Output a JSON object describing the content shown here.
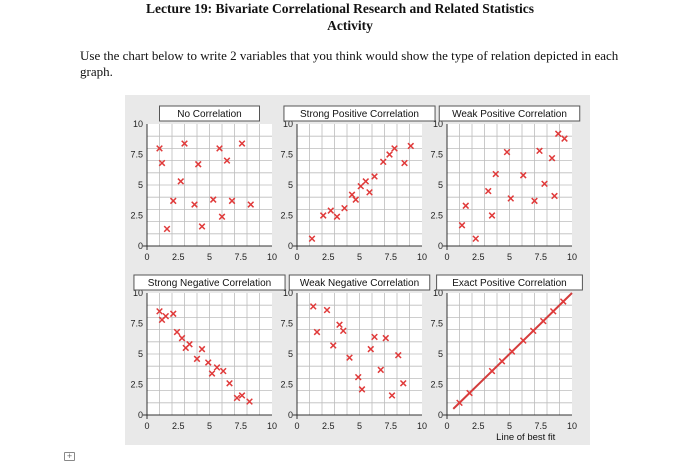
{
  "title": {
    "line1": "Lecture 19: Bivariate Correlational Research and Related Statistics",
    "line2": "Activity"
  },
  "instructions": "Use the chart below to write 2 variables that you think would show the type of relation depicted in each graph.",
  "colors": {
    "point": "#e03a3a",
    "line": "#d23c3c",
    "grid": "#bdbdbd",
    "plot_bg": "#ffffff",
    "panel_bg": "#e9e9e9"
  },
  "chart_data": [
    {
      "type": "scatter",
      "title": "No Correlation",
      "x_ticks": [
        "0",
        "2.5",
        "5",
        "7.5",
        "10"
      ],
      "y_ticks": [
        "0",
        "2.5",
        "5",
        "7.5",
        "10"
      ],
      "xlim": [
        0,
        10
      ],
      "ylim": [
        0,
        10
      ],
      "points": [
        [
          1,
          8
        ],
        [
          1.2,
          6.8
        ],
        [
          1.6,
          1.4
        ],
        [
          2.1,
          3.7
        ],
        [
          2.7,
          5.3
        ],
        [
          3,
          8.4
        ],
        [
          3.8,
          3.4
        ],
        [
          4.1,
          6.7
        ],
        [
          4.4,
          1.6
        ],
        [
          5.3,
          3.8
        ],
        [
          5.8,
          8
        ],
        [
          6,
          2.4
        ],
        [
          6.4,
          7
        ],
        [
          6.8,
          3.7
        ],
        [
          7.6,
          8.4
        ],
        [
          8.3,
          3.4
        ]
      ]
    },
    {
      "type": "scatter",
      "title": "Strong Positive Correlation",
      "x_ticks": [
        "0",
        "2.5",
        "5",
        "7.5",
        "10"
      ],
      "y_ticks": [
        "0",
        "2.5",
        "5",
        "7.5",
        "10"
      ],
      "xlim": [
        0,
        10
      ],
      "ylim": [
        0,
        10
      ],
      "points": [
        [
          1.2,
          0.6
        ],
        [
          2.1,
          2.5
        ],
        [
          2.7,
          2.9
        ],
        [
          3.2,
          2.4
        ],
        [
          3.8,
          3.1
        ],
        [
          4.4,
          4.2
        ],
        [
          4.7,
          3.8
        ],
        [
          5.1,
          4.9
        ],
        [
          5.5,
          5.3
        ],
        [
          5.8,
          4.4
        ],
        [
          6.2,
          5.7
        ],
        [
          6.9,
          6.9
        ],
        [
          7.4,
          7.5
        ],
        [
          7.8,
          8
        ],
        [
          8.6,
          6.8
        ],
        [
          9.1,
          8.2
        ]
      ]
    },
    {
      "type": "scatter",
      "title": "Weak Positive Correlation",
      "x_ticks": [
        "0",
        "2.5",
        "5",
        "7.5",
        "10"
      ],
      "y_ticks": [
        "0",
        "2.5",
        "5",
        "7.5",
        "10"
      ],
      "xlim": [
        0,
        10
      ],
      "ylim": [
        0,
        10
      ],
      "points": [
        [
          1.2,
          1.7
        ],
        [
          1.5,
          3.3
        ],
        [
          2.3,
          0.6
        ],
        [
          3.3,
          4.5
        ],
        [
          3.6,
          2.5
        ],
        [
          3.9,
          5.9
        ],
        [
          4.8,
          7.7
        ],
        [
          5.1,
          3.9
        ],
        [
          6.1,
          5.8
        ],
        [
          7,
          3.7
        ],
        [
          7.4,
          7.8
        ],
        [
          7.8,
          5.1
        ],
        [
          8.4,
          7.2
        ],
        [
          8.9,
          9.2
        ],
        [
          9.4,
          8.8
        ],
        [
          8.6,
          4.1
        ]
      ]
    },
    {
      "type": "scatter",
      "title": "Strong Negative Correlation",
      "x_ticks": [
        "0",
        "2.5",
        "5",
        "7.5",
        "10"
      ],
      "y_ticks": [
        "0",
        "2.5",
        "5",
        "7.5",
        "10"
      ],
      "xlim": [
        0,
        10
      ],
      "ylim": [
        0,
        10
      ],
      "points": [
        [
          1,
          8.5
        ],
        [
          1.2,
          7.8
        ],
        [
          1.5,
          8.1
        ],
        [
          2.1,
          8.3
        ],
        [
          2.4,
          6.8
        ],
        [
          2.8,
          6.3
        ],
        [
          3.1,
          5.5
        ],
        [
          3.4,
          5.8
        ],
        [
          4,
          4.6
        ],
        [
          4.4,
          5.4
        ],
        [
          4.9,
          4.3
        ],
        [
          5.2,
          3.4
        ],
        [
          5.6,
          3.9
        ],
        [
          6.1,
          3.6
        ],
        [
          6.6,
          2.6
        ],
        [
          7.2,
          1.4
        ],
        [
          7.6,
          1.6
        ],
        [
          8.2,
          1.1
        ]
      ]
    },
    {
      "type": "scatter",
      "title": "Weak Negative Correlation",
      "x_ticks": [
        "0",
        "2.5",
        "5",
        "7.5",
        "10"
      ],
      "y_ticks": [
        "0",
        "2.5",
        "5",
        "7.5",
        "10"
      ],
      "xlim": [
        0,
        10
      ],
      "ylim": [
        0,
        10
      ],
      "points": [
        [
          1.3,
          8.9
        ],
        [
          1.6,
          6.8
        ],
        [
          2.4,
          8.6
        ],
        [
          2.9,
          5.7
        ],
        [
          3.4,
          7.4
        ],
        [
          3.7,
          6.9
        ],
        [
          4.2,
          4.7
        ],
        [
          5.2,
          2.1
        ],
        [
          5.9,
          5.4
        ],
        [
          6.2,
          6.4
        ],
        [
          6.7,
          3.7
        ],
        [
          7.1,
          6.3
        ],
        [
          7.6,
          1.6
        ],
        [
          8.1,
          4.9
        ],
        [
          8.5,
          2.6
        ],
        [
          4.9,
          3.1
        ]
      ]
    },
    {
      "type": "scatter",
      "title": "Exact Positive Correlation",
      "x_ticks": [
        "0",
        "2.5",
        "5",
        "7.5",
        "10"
      ],
      "y_ticks": [
        "0",
        "2.5",
        "5",
        "7.5",
        "10"
      ],
      "xlim": [
        0,
        10
      ],
      "ylim": [
        0,
        10
      ],
      "best_fit_label": "Line of best fit",
      "line": [
        [
          0.5,
          0.5
        ],
        [
          10,
          10
        ]
      ],
      "points": [
        [
          1,
          1
        ],
        [
          1.8,
          1.8
        ],
        [
          3.6,
          3.6
        ],
        [
          4.4,
          4.4
        ],
        [
          5.2,
          5.2
        ],
        [
          6.1,
          6.1
        ],
        [
          6.9,
          6.9
        ],
        [
          7.7,
          7.7
        ],
        [
          8.5,
          8.5
        ],
        [
          9.3,
          9.3
        ]
      ]
    }
  ]
}
